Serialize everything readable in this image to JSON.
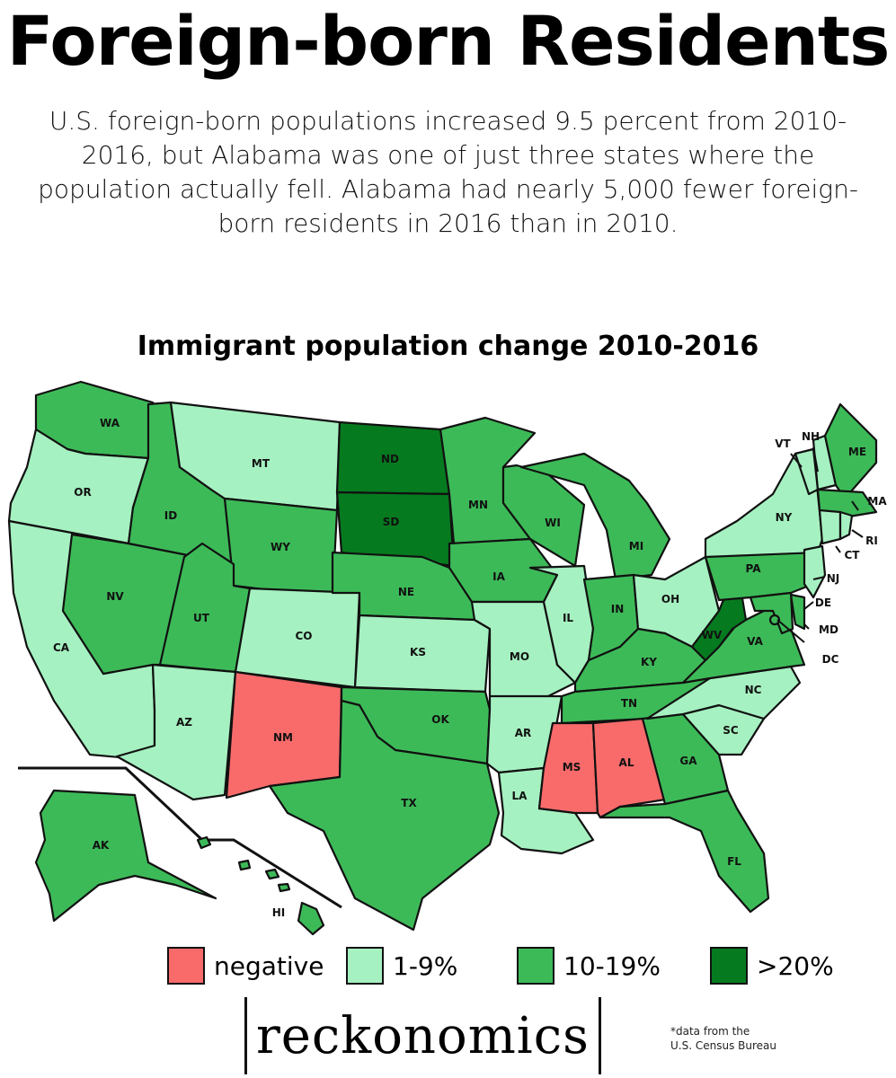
{
  "title": "Foreign-born Residents",
  "subtitle": "U.S. foreign-born populations increased 9.5 percent from 2010-2016, but Alabama was one of just three states where the population actually fell. Alabama had nearly 5,000 fewer foreign-born residents in 2016 than in 2010.",
  "map_title": "Immigrant population change 2010-2016",
  "colors": {
    "negative": "#f96b6b",
    "1-9%": "#a6f1c1",
    "10-19%": "#3dba58",
    ">20%": "#067a1f"
  },
  "legend": [
    {
      "label": "negative",
      "category": "negative"
    },
    {
      "label": "1-9%",
      "category": "1-9%"
    },
    {
      "label": "10-19%",
      "category": "10-19%"
    },
    {
      "label": ">20%",
      "category": ">20%"
    }
  ],
  "states": {
    "WA": "10-19%",
    "OR": "1-9%",
    "CA": "1-9%",
    "NV": "10-19%",
    "ID": "10-19%",
    "MT": "1-9%",
    "WY": "10-19%",
    "UT": "10-19%",
    "AZ": "1-9%",
    "CO": "1-9%",
    "NM": "negative",
    "ND": ">20%",
    "SD": ">20%",
    "NE": "10-19%",
    "KS": "1-9%",
    "OK": "10-19%",
    "TX": "10-19%",
    "MN": "10-19%",
    "IA": "10-19%",
    "MO": "1-9%",
    "AR": "1-9%",
    "LA": "1-9%",
    "WI": "10-19%",
    "IL": "1-9%",
    "MI": "10-19%",
    "IN": "10-19%",
    "OH": "1-9%",
    "KY": "10-19%",
    "TN": "10-19%",
    "MS": "negative",
    "AL": "negative",
    "GA": "10-19%",
    "FL": "10-19%",
    "SC": "1-9%",
    "NC": "1-9%",
    "VA": "10-19%",
    "WV": ">20%",
    "PA": "10-19%",
    "NY": "1-9%",
    "VT": "1-9%",
    "NH": "1-9%",
    "ME": "10-19%",
    "MA": "10-19%",
    "RI": "1-9%",
    "CT": "1-9%",
    "NJ": "1-9%",
    "DE": "10-19%",
    "MD": "10-19%",
    "DC": "10-19%",
    "AK": "10-19%",
    "HI": "10-19%"
  },
  "labels": {
    "WA": "WA",
    "OR": "OR",
    "CA": "CA",
    "NV": "NV",
    "ID": "ID",
    "MT": "MT",
    "WY": "WY",
    "UT": "UT",
    "AZ": "AZ",
    "CO": "CO",
    "NM": "NM",
    "ND": "ND",
    "SD": "SD",
    "NE": "NE",
    "KS": "KS",
    "OK": "OK",
    "TX": "TX",
    "MN": "MN",
    "IA": "IA",
    "MO": "MO",
    "AR": "AR",
    "LA": "LA",
    "WI": "WI",
    "IL": "IL",
    "MI": "MI",
    "IN": "IN",
    "OH": "OH",
    "KY": "KY",
    "TN": "TN",
    "MS": "MS",
    "AL": "AL",
    "GA": "GA",
    "FL": "FL",
    "SC": "SC",
    "NC": "NC",
    "VA": "VA",
    "WV": "WV",
    "PA": "PA",
    "NY": "NY",
    "VT": "VT",
    "NH": "NH",
    "ME": "ME",
    "MA": "MA",
    "RI": "RI",
    "CT": "CT",
    "NJ": "NJ",
    "DE": "DE",
    "MD": "MD",
    "DC": "DC",
    "AK": "AK",
    "HI": "HI"
  },
  "brand": "reckonomics",
  "source_line1": "*data from the",
  "source_line2": "U.S. Census Bureau"
}
